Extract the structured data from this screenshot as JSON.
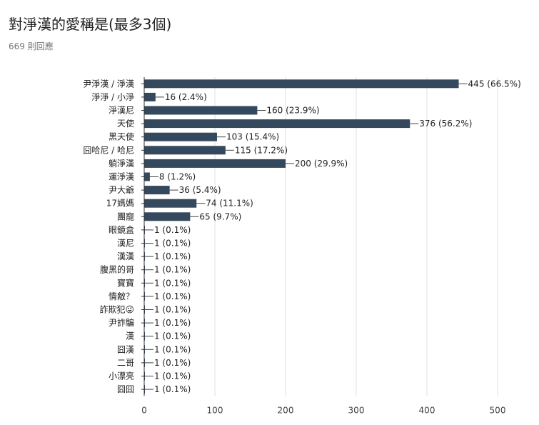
{
  "header": {
    "title": "對淨漢的愛稱是(最多3個)",
    "response_count": "669 則回應"
  },
  "colors": {
    "bar": "#34495e",
    "grid": "#e0e0e0",
    "axis": "#333333"
  },
  "chart_data": {
    "type": "bar",
    "orientation": "horizontal",
    "title": "對淨漢的愛稱是(最多3個)",
    "xlabel": "",
    "ylabel": "",
    "xlim": [
      0,
      500
    ],
    "xticks": [
      0,
      100,
      200,
      300,
      400,
      500
    ],
    "grid": true,
    "categories": [
      "尹淨漢 / 淨漢",
      "淨淨 / 小淨",
      "淨漢尼",
      "天使",
      "黑天使",
      "囧哈尼 / 哈尼",
      "躺淨漢",
      "運淨漢",
      "尹大爺",
      "17媽媽",
      "團寵",
      "眼鏡盒",
      "漢尼",
      "漢漢",
      "腹黑的哥",
      "寶寶",
      "情敵？",
      "詐欺犯😜",
      "尹詐騙",
      "漢",
      "囧漢",
      "二哥",
      "小漂亮",
      "囧囧"
    ],
    "values": [
      445,
      16,
      160,
      376,
      103,
      115,
      200,
      8,
      36,
      74,
      65,
      1,
      1,
      1,
      1,
      1,
      1,
      1,
      1,
      1,
      1,
      1,
      1,
      1
    ],
    "value_labels": [
      "445 (66.5%)",
      "16 (2.4%)",
      "160 (23.9%)",
      "376 (56.2%)",
      "103 (15.4%)",
      "115 (17.2%)",
      "200 (29.9%)",
      "8 (1.2%)",
      "36 (5.4%)",
      "74 (11.1%)",
      "65 (9.7%)",
      "1 (0.1%)",
      "1 (0.1%)",
      "1 (0.1%)",
      "1 (0.1%)",
      "1 (0.1%)",
      "1 (0.1%)",
      "1 (0.1%)",
      "1 (0.1%)",
      "1 (0.1%)",
      "1 (0.1%)",
      "1 (0.1%)",
      "1 (0.1%)",
      "1 (0.1%)"
    ]
  }
}
